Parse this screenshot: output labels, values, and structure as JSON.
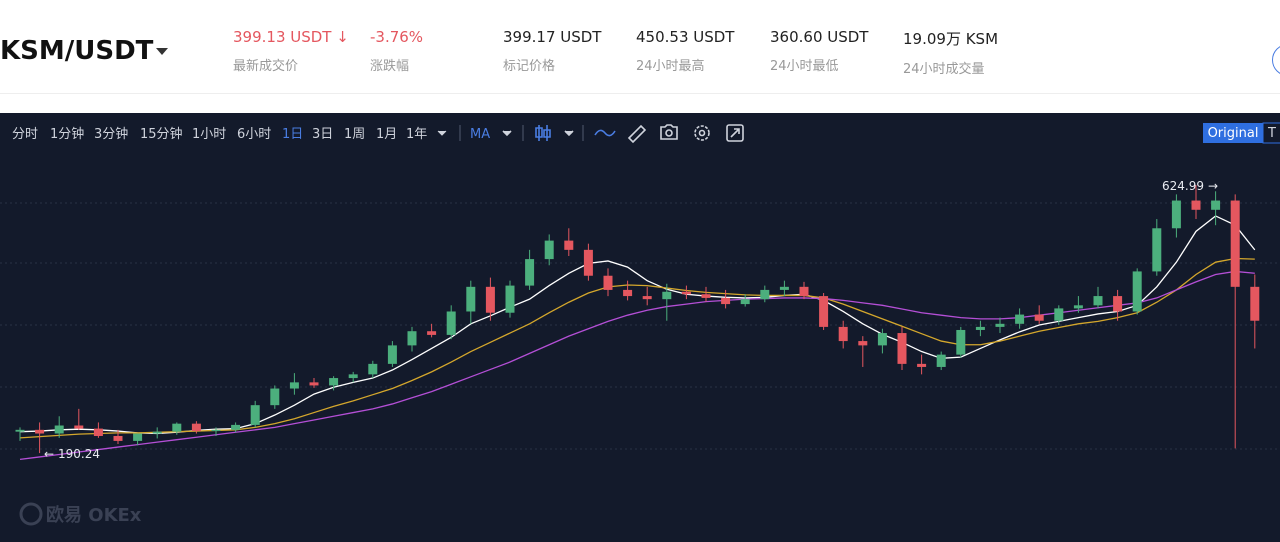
{
  "header": {
    "pair": "KSM/USDT",
    "stats": [
      {
        "value": "399.13 USDT",
        "label": "最新成交价"
      },
      {
        "value": "-3.76%",
        "label": "涨跌幅"
      },
      {
        "value": "399.17 USDT",
        "label": "标记价格"
      },
      {
        "value": "450.53 USDT",
        "label": "24小时最高"
      },
      {
        "value": "360.60 USDT",
        "label": "24小时最低"
      },
      {
        "value": "19.09万 KSM",
        "label": "24小时成交量"
      }
    ]
  },
  "toolbar": {
    "intervals": [
      "分时",
      "1分钟",
      "3分钟",
      "15分钟",
      "1小时",
      "6小时",
      "1日",
      "3日",
      "1周",
      "1月",
      "1年"
    ],
    "active": "1日",
    "indicator": "MA",
    "views": [
      "Original",
      "T"
    ]
  },
  "watermark": "欧易 OKEx",
  "chart_data": {
    "type": "candlestick",
    "up_color": "#4caf7d",
    "down_color": "#e4575f",
    "ylim": [
      46,
      682
    ],
    "candles": [
      [
        225,
        232,
        210,
        228
      ],
      [
        228,
        240,
        190.24,
        222
      ],
      [
        222,
        250,
        215,
        235
      ],
      [
        235,
        262,
        228,
        230
      ],
      [
        230,
        240,
        215,
        218
      ],
      [
        218,
        228,
        205,
        210
      ],
      [
        210,
        222,
        203,
        222
      ],
      [
        222,
        232,
        214,
        225
      ],
      [
        225,
        240,
        220,
        238
      ],
      [
        238,
        242,
        222,
        226
      ],
      [
        226,
        232,
        218,
        228
      ],
      [
        228,
        240,
        224,
        236
      ],
      [
        236,
        275,
        232,
        268
      ],
      [
        268,
        300,
        262,
        295
      ],
      [
        295,
        320,
        285,
        305
      ],
      [
        305,
        312,
        296,
        300
      ],
      [
        300,
        315,
        292,
        312
      ],
      [
        312,
        322,
        305,
        318
      ],
      [
        318,
        340,
        312,
        335
      ],
      [
        335,
        372,
        330,
        365
      ],
      [
        365,
        395,
        355,
        388
      ],
      [
        388,
        400,
        378,
        382
      ],
      [
        382,
        430,
        375,
        420
      ],
      [
        420,
        470,
        400,
        460
      ],
      [
        460,
        475,
        405,
        418
      ],
      [
        418,
        470,
        410,
        462
      ],
      [
        462,
        520,
        455,
        505
      ],
      [
        505,
        545,
        495,
        535
      ],
      [
        535,
        555,
        510,
        520
      ],
      [
        520,
        530,
        470,
        478
      ],
      [
        478,
        490,
        445,
        455
      ],
      [
        455,
        470,
        438,
        445
      ],
      [
        445,
        460,
        430,
        440
      ],
      [
        440,
        465,
        405,
        452
      ],
      [
        452,
        462,
        440,
        448
      ],
      [
        448,
        460,
        436,
        442
      ],
      [
        442,
        455,
        425,
        432
      ],
      [
        432,
        448,
        428,
        440
      ],
      [
        440,
        462,
        435,
        455
      ],
      [
        455,
        470,
        445,
        460
      ],
      [
        460,
        468,
        440,
        445
      ],
      [
        445,
        450,
        390,
        395
      ],
      [
        395,
        405,
        360,
        372
      ],
      [
        372,
        380,
        330,
        365
      ],
      [
        365,
        392,
        352,
        385
      ],
      [
        385,
        395,
        325,
        335
      ],
      [
        335,
        350,
        318,
        330
      ],
      [
        330,
        355,
        325,
        350
      ],
      [
        350,
        395,
        345,
        390
      ],
      [
        390,
        405,
        380,
        395
      ],
      [
        395,
        410,
        385,
        400
      ],
      [
        400,
        425,
        392,
        415
      ],
      [
        415,
        430,
        400,
        405
      ],
      [
        405,
        430,
        398,
        425
      ],
      [
        425,
        445,
        418,
        430
      ],
      [
        430,
        460,
        425,
        445
      ],
      [
        445,
        455,
        405,
        420
      ],
      [
        420,
        490,
        415,
        485
      ],
      [
        485,
        570,
        478,
        555
      ],
      [
        555,
        610,
        540,
        600
      ],
      [
        600,
        624.99,
        570,
        585
      ],
      [
        585,
        615,
        560,
        600
      ],
      [
        600,
        610,
        198,
        460
      ],
      [
        460,
        480,
        360,
        405
      ]
    ],
    "lines": [
      {
        "color": "#ffffff",
        "values": [
          225,
          226,
          228,
          229,
          228,
          226,
          223,
          222,
          224,
          227,
          229,
          230,
          238,
          252,
          268,
          286,
          297,
          305,
          312,
          325,
          342,
          360,
          378,
          400,
          413,
          427,
          440,
          462,
          482,
          498,
          502,
          492,
          470,
          456,
          448,
          445,
          443,
          442,
          443,
          446,
          448,
          438,
          420,
          400,
          383,
          370,
          355,
          344,
          346,
          360,
          374,
          387,
          398,
          404,
          410,
          416,
          420,
          430,
          460,
          500,
          550,
          575,
          560,
          520
        ]
      },
      {
        "color": "#d4a72c",
        "values": [
          215,
          217,
          219,
          221,
          222,
          223,
          223,
          224,
          225,
          226,
          227,
          228,
          232,
          238,
          246,
          256,
          266,
          275,
          285,
          295,
          308,
          322,
          338,
          355,
          370,
          385,
          400,
          418,
          435,
          450,
          460,
          463,
          462,
          458,
          454,
          451,
          449,
          447,
          446,
          446,
          446,
          442,
          432,
          420,
          408,
          396,
          384,
          372,
          366,
          366,
          372,
          380,
          388,
          394,
          400,
          404,
          410,
          418,
          435,
          455,
          480,
          500,
          506,
          505
        ]
      },
      {
        "color": "#b44fd6",
        "values": [
          180,
          184,
          188,
          192,
          196,
          200,
          204,
          208,
          212,
          216,
          220,
          224,
          228,
          232,
          238,
          244,
          250,
          256,
          262,
          270,
          280,
          290,
          302,
          314,
          326,
          338,
          352,
          366,
          380,
          392,
          404,
          414,
          422,
          428,
          432,
          436,
          438,
          440,
          441,
          442,
          442,
          441,
          438,
          434,
          430,
          424,
          418,
          414,
          410,
          408,
          408,
          410,
          414,
          418,
          422,
          426,
          430,
          434,
          442,
          455,
          468,
          480,
          485,
          482
        ]
      }
    ]
  }
}
